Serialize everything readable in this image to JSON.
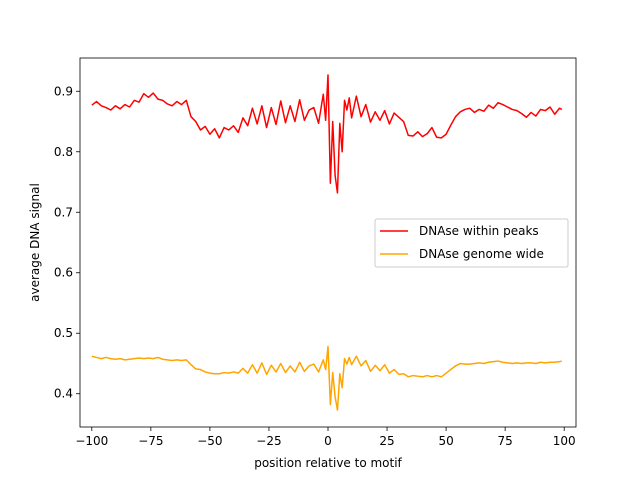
{
  "chart_data": {
    "type": "line",
    "title": "",
    "xlabel": "position relative to motif",
    "ylabel": "average DNA signal",
    "xlim": [
      -105,
      105
    ],
    "ylim": [
      0.345,
      0.955
    ],
    "xticks": [
      -100,
      -75,
      -50,
      -25,
      0,
      25,
      50,
      75,
      100
    ],
    "yticks": [
      0.4,
      0.5,
      0.6,
      0.7,
      0.8,
      0.9
    ],
    "grid": false,
    "legend_position": "center-right",
    "series": [
      {
        "name": "DNAse within peaks",
        "color": "#ff0000",
        "x": [
          -100,
          -98,
          -96,
          -94,
          -92,
          -90,
          -88,
          -86,
          -84,
          -82,
          -80,
          -78,
          -76,
          -74,
          -72,
          -70,
          -68,
          -66,
          -64,
          -62,
          -60,
          -58,
          -56,
          -54,
          -52,
          -50,
          -48,
          -46,
          -44,
          -42,
          -40,
          -38,
          -36,
          -34,
          -32,
          -30,
          -28,
          -26,
          -24,
          -22,
          -20,
          -18,
          -16,
          -14,
          -12,
          -10,
          -8,
          -6,
          -4,
          -2,
          -1,
          0,
          1,
          2,
          3,
          4,
          5,
          6,
          7,
          8,
          9,
          10,
          12,
          14,
          16,
          18,
          20,
          22,
          24,
          26,
          28,
          30,
          32,
          34,
          36,
          38,
          40,
          42,
          44,
          46,
          48,
          50,
          52,
          54,
          56,
          58,
          60,
          62,
          64,
          66,
          68,
          70,
          72,
          74,
          76,
          78,
          80,
          82,
          84,
          86,
          88,
          90,
          92,
          94,
          96,
          98,
          99
        ],
        "values": [
          0.877,
          0.883,
          0.876,
          0.873,
          0.869,
          0.876,
          0.871,
          0.878,
          0.874,
          0.885,
          0.882,
          0.896,
          0.89,
          0.897,
          0.887,
          0.885,
          0.879,
          0.876,
          0.883,
          0.878,
          0.885,
          0.858,
          0.85,
          0.836,
          0.842,
          0.829,
          0.838,
          0.823,
          0.84,
          0.836,
          0.843,
          0.832,
          0.856,
          0.843,
          0.872,
          0.846,
          0.876,
          0.84,
          0.873,
          0.845,
          0.884,
          0.848,
          0.876,
          0.85,
          0.886,
          0.852,
          0.869,
          0.873,
          0.847,
          0.895,
          0.852,
          0.927,
          0.748,
          0.85,
          0.761,
          0.732,
          0.847,
          0.8,
          0.885,
          0.869,
          0.889,
          0.856,
          0.892,
          0.858,
          0.878,
          0.849,
          0.866,
          0.852,
          0.868,
          0.846,
          0.864,
          0.857,
          0.85,
          0.827,
          0.826,
          0.833,
          0.825,
          0.83,
          0.84,
          0.824,
          0.823,
          0.829,
          0.844,
          0.858,
          0.866,
          0.87,
          0.872,
          0.865,
          0.87,
          0.867,
          0.877,
          0.872,
          0.881,
          0.878,
          0.874,
          0.87,
          0.868,
          0.863,
          0.857,
          0.865,
          0.859,
          0.87,
          0.868,
          0.874,
          0.862,
          0.872,
          0.87
        ]
      },
      {
        "name": "DNAse genome wide",
        "color": "#ffa500",
        "x": [
          -100,
          -98,
          -96,
          -94,
          -92,
          -90,
          -88,
          -86,
          -84,
          -82,
          -80,
          -78,
          -76,
          -74,
          -72,
          -70,
          -68,
          -66,
          -64,
          -62,
          -60,
          -58,
          -56,
          -54,
          -52,
          -50,
          -48,
          -46,
          -44,
          -42,
          -40,
          -38,
          -36,
          -34,
          -32,
          -30,
          -28,
          -26,
          -24,
          -22,
          -20,
          -18,
          -16,
          -14,
          -12,
          -10,
          -8,
          -6,
          -4,
          -2,
          -1,
          0,
          1,
          2,
          3,
          4,
          5,
          6,
          7,
          8,
          9,
          10,
          12,
          14,
          16,
          18,
          20,
          22,
          24,
          26,
          28,
          30,
          32,
          34,
          36,
          38,
          40,
          42,
          44,
          46,
          48,
          50,
          52,
          54,
          56,
          58,
          60,
          62,
          64,
          66,
          68,
          70,
          72,
          74,
          76,
          78,
          80,
          82,
          84,
          86,
          88,
          90,
          92,
          94,
          96,
          98,
          99
        ],
        "values": [
          0.462,
          0.46,
          0.458,
          0.46,
          0.458,
          0.457,
          0.458,
          0.456,
          0.457,
          0.458,
          0.459,
          0.458,
          0.459,
          0.458,
          0.46,
          0.457,
          0.456,
          0.455,
          0.456,
          0.455,
          0.456,
          0.448,
          0.441,
          0.44,
          0.436,
          0.434,
          0.433,
          0.433,
          0.435,
          0.434,
          0.436,
          0.434,
          0.442,
          0.434,
          0.448,
          0.434,
          0.451,
          0.432,
          0.447,
          0.436,
          0.45,
          0.435,
          0.446,
          0.436,
          0.452,
          0.437,
          0.446,
          0.449,
          0.436,
          0.456,
          0.44,
          0.478,
          0.382,
          0.435,
          0.395,
          0.373,
          0.433,
          0.41,
          0.458,
          0.449,
          0.46,
          0.448,
          0.462,
          0.446,
          0.455,
          0.437,
          0.447,
          0.438,
          0.448,
          0.434,
          0.44,
          0.432,
          0.433,
          0.428,
          0.43,
          0.429,
          0.428,
          0.43,
          0.428,
          0.43,
          0.428,
          0.434,
          0.44,
          0.446,
          0.45,
          0.449,
          0.449,
          0.45,
          0.451,
          0.45,
          0.452,
          0.453,
          0.454,
          0.452,
          0.451,
          0.45,
          0.451,
          0.45,
          0.451,
          0.451,
          0.45,
          0.452,
          0.451,
          0.452,
          0.452,
          0.453,
          0.454
        ]
      }
    ]
  }
}
